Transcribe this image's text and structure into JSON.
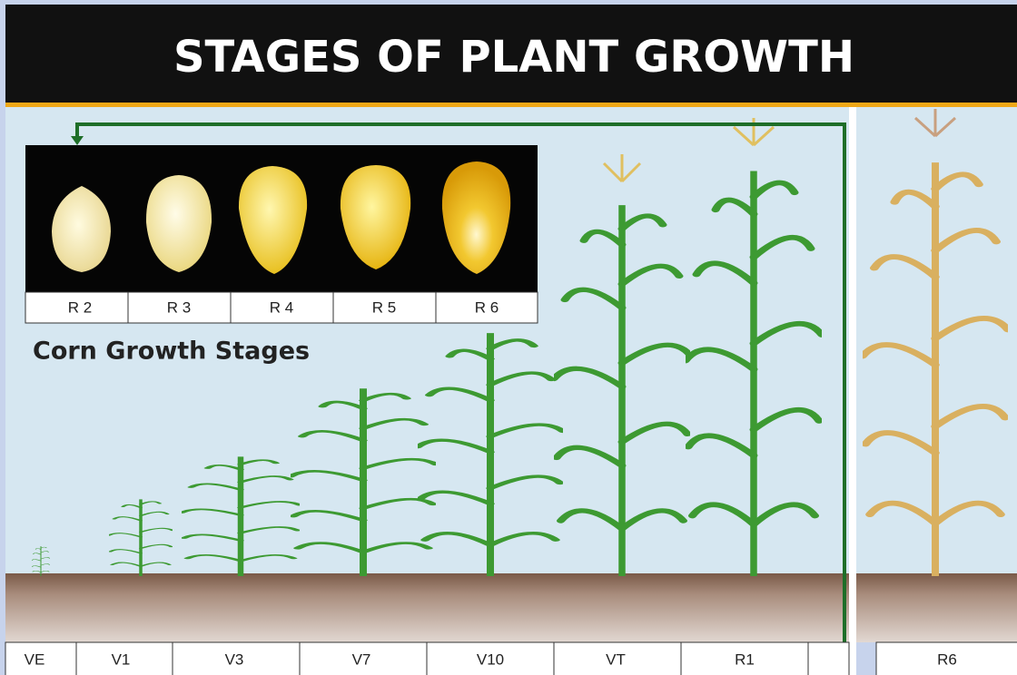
{
  "title": "STAGES OF PLANT GROWTH",
  "kernel_stages": [
    "R 2",
    "R 3",
    "R 4",
    "R 5",
    "R 6"
  ],
  "subtitle": "Corn Growth Stages",
  "growth_stages": [
    "VE",
    "V1",
    "V3",
    "V7",
    "V10",
    "VT",
    "R1",
    "R6"
  ]
}
